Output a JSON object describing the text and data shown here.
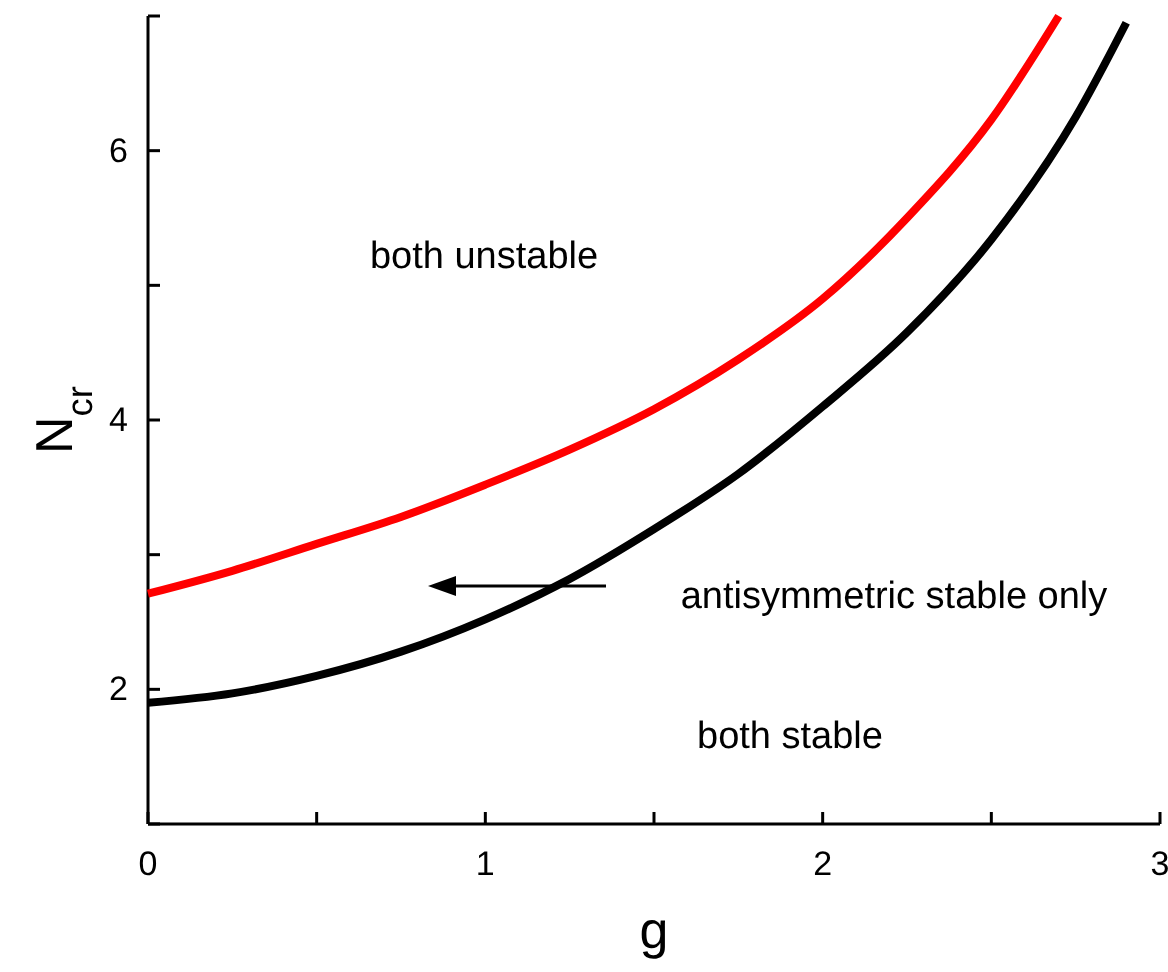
{
  "chart_data": {
    "type": "line",
    "xlabel": "g",
    "ylabel": "N$_{cr}$",
    "x": [
      0,
      0.25,
      0.5,
      0.75,
      1,
      1.25,
      1.5,
      1.75,
      2,
      2.25,
      2.5,
      2.7
    ],
    "series": [
      {
        "color": "#ff0000",
        "values": [
          2.71,
          2.88,
          3.08,
          3.28,
          3.52,
          3.78,
          4.08,
          4.45,
          4.9,
          5.5,
          6.23,
          7.0
        ]
      },
      {
        "color": "#000000",
        "x": [
          0,
          0.25,
          0.5,
          0.75,
          1,
          1.25,
          1.5,
          1.75,
          2,
          2.25,
          2.5,
          2.75,
          2.9
        ],
        "values": [
          1.9,
          1.97,
          2.1,
          2.28,
          2.52,
          2.82,
          3.19,
          3.6,
          4.1,
          4.65,
          5.34,
          6.25,
          6.95
        ]
      }
    ],
    "xlim": [
      0,
      3
    ],
    "ylim": [
      1,
      7
    ],
    "xticks": [
      0,
      {
        "value": 0.5,
        "label": null
      },
      1,
      {
        "value": 1.5,
        "label": null
      },
      2,
      {
        "value": 2.5,
        "label": null
      },
      3
    ],
    "yticks": [
      {
        "value": 1,
        "label": null
      },
      2,
      {
        "value": 3,
        "label": null
      },
      4,
      {
        "value": 5,
        "label": null
      },
      6,
      {
        "value": 7,
        "label": null
      }
    ],
    "line_style": "solid",
    "marker": "none",
    "annotations": [
      "both unstable",
      "antisymmetric stable only",
      "both stable"
    ]
  }
}
